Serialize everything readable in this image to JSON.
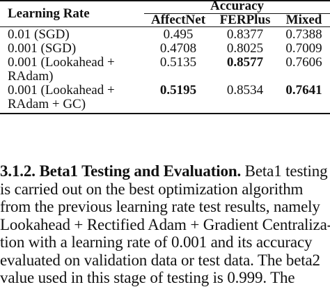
{
  "table": {
    "col_learning_rate": "Learning Rate",
    "group_header": "Accuracy",
    "col_affectnet": "AffectNet",
    "col_ferplus": "FERPlus",
    "col_mixed": "Mixed",
    "rows": [
      {
        "lr_line1": "0.01 (SGD)",
        "lr_line2": "",
        "affectnet": "0.495",
        "ferplus": "0.8377",
        "mixed": "0.7388",
        "bold": []
      },
      {
        "lr_line1": "0.001 (SGD)",
        "lr_line2": "",
        "affectnet": "0.4708",
        "ferplus": "0.8025",
        "mixed": "0.7009",
        "bold": []
      },
      {
        "lr_line1": "0.001 (Lookahead +",
        "lr_line2": "RAdam)",
        "affectnet": "0.5135",
        "ferplus": "0.8577",
        "mixed": "0.7606",
        "bold": [
          "ferplus"
        ]
      },
      {
        "lr_line1": "0.001 (Lookahead +",
        "lr_line2": "RAdam + GC)",
        "affectnet": "0.5195",
        "ferplus": "0.8534",
        "mixed": "0.7641",
        "bold": [
          "affectnet",
          "mixed"
        ]
      }
    ]
  },
  "section": {
    "heading": "3.1.2.  Beta1 Testing and Evaluation.",
    "lines": [
      " Beta1 testing",
      "is carried out on the best optimization algorithm",
      "from the previous learning rate test results, namely",
      "Lookahead + Rectified Adam + Gradient Centraliza-",
      "tion with a learning rate of 0.001 and its accuracy",
      "evaluated on validation data or test data. The beta2",
      "value used in this stage of testing is 0.999. The"
    ]
  }
}
